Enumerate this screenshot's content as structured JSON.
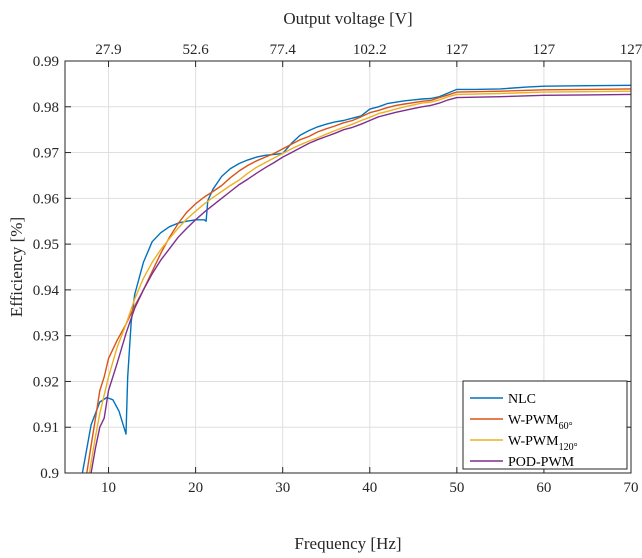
{
  "chart_data": {
    "type": "line",
    "xlabel": "Frequency [Hz]",
    "ylabel": "Efficiency [%]",
    "top_xlabel": "Output voltage [V]",
    "xlim": [
      5,
      70
    ],
    "ylim": [
      0.9,
      0.99
    ],
    "x_ticks": [
      10,
      20,
      30,
      40,
      50,
      60,
      70
    ],
    "y_ticks": [
      0.9,
      0.91,
      0.92,
      0.93,
      0.94,
      0.95,
      0.96,
      0.97,
      0.98,
      0.99
    ],
    "y_tick_labels": [
      "0.9",
      "0.91",
      "0.92",
      "0.93",
      "0.94",
      "0.95",
      "0.96",
      "0.97",
      "0.98",
      "0.99"
    ],
    "top_ticks": [
      {
        "x": 10,
        "label": "27.9"
      },
      {
        "x": 20,
        "label": "52.6"
      },
      {
        "x": 30,
        "label": "77.4"
      },
      {
        "x": 40,
        "label": "102.2"
      },
      {
        "x": 50,
        "label": "127"
      },
      {
        "x": 60,
        "label": "127"
      },
      {
        "x": 70,
        "label": "127"
      }
    ],
    "grid": true,
    "legend_position": "bottom-right",
    "series": [
      {
        "name": "NLC",
        "name_sub": "",
        "color": "#0072BD",
        "points": [
          [
            7.0,
            0.9
          ],
          [
            8.0,
            0.9105
          ],
          [
            9.0,
            0.9155
          ],
          [
            9.8,
            0.9165
          ],
          [
            10.5,
            0.916
          ],
          [
            11.2,
            0.9135
          ],
          [
            12.0,
            0.9085
          ],
          [
            12.2,
            0.921
          ],
          [
            12.6,
            0.933
          ],
          [
            13.0,
            0.939
          ],
          [
            14.0,
            0.946
          ],
          [
            15.0,
            0.9505
          ],
          [
            16.0,
            0.9525
          ],
          [
            17.0,
            0.9538
          ],
          [
            18.0,
            0.9546
          ],
          [
            19.0,
            0.955
          ],
          [
            20.0,
            0.9553
          ],
          [
            21.0,
            0.9553
          ],
          [
            21.2,
            0.955
          ],
          [
            21.4,
            0.9595
          ],
          [
            22.0,
            0.962
          ],
          [
            23.0,
            0.9648
          ],
          [
            24.0,
            0.9665
          ],
          [
            25.0,
            0.9676
          ],
          [
            26.0,
            0.9684
          ],
          [
            27.0,
            0.969
          ],
          [
            28.0,
            0.9694
          ],
          [
            29.0,
            0.9696
          ],
          [
            30.0,
            0.9698
          ],
          [
            31.0,
            0.972
          ],
          [
            32.0,
            0.9738
          ],
          [
            33.0,
            0.9748
          ],
          [
            34.0,
            0.9756
          ],
          [
            35.0,
            0.9762
          ],
          [
            36.0,
            0.9767
          ],
          [
            37.0,
            0.977
          ],
          [
            38.0,
            0.9775
          ],
          [
            39.0,
            0.978
          ],
          [
            40.0,
            0.9795
          ],
          [
            41.0,
            0.98
          ],
          [
            42.0,
            0.9807
          ],
          [
            43.0,
            0.981
          ],
          [
            44.0,
            0.9813
          ],
          [
            45.0,
            0.9815
          ],
          [
            46.0,
            0.9817
          ],
          [
            47.0,
            0.9818
          ],
          [
            48.0,
            0.9822
          ],
          [
            49.0,
            0.983
          ],
          [
            50.0,
            0.9838
          ],
          [
            52.0,
            0.9838
          ],
          [
            55.0,
            0.9839
          ],
          [
            58.0,
            0.9843
          ],
          [
            60.0,
            0.9845
          ],
          [
            65.0,
            0.9846
          ],
          [
            70.0,
            0.9847
          ]
        ]
      },
      {
        "name": "W-PWM",
        "name_sub": "60°",
        "color": "#D95319",
        "points": [
          [
            7.5,
            0.9
          ],
          [
            8.0,
            0.906
          ],
          [
            8.5,
            0.912
          ],
          [
            9.0,
            0.918
          ],
          [
            9.5,
            0.921
          ],
          [
            10.0,
            0.925
          ],
          [
            11.0,
            0.929
          ],
          [
            12.0,
            0.9325
          ],
          [
            13.0,
            0.9365
          ],
          [
            14.0,
            0.94
          ],
          [
            15.0,
            0.944
          ],
          [
            16.0,
            0.948
          ],
          [
            17.0,
            0.9515
          ],
          [
            18.0,
            0.9545
          ],
          [
            19.0,
            0.957
          ],
          [
            20.0,
            0.9588
          ],
          [
            21.0,
            0.9603
          ],
          [
            22.0,
            0.9615
          ],
          [
            23.0,
            0.9628
          ],
          [
            24.0,
            0.9645
          ],
          [
            25.0,
            0.966
          ],
          [
            26.0,
            0.9672
          ],
          [
            27.0,
            0.9682
          ],
          [
            28.0,
            0.969
          ],
          [
            29.0,
            0.9698
          ],
          [
            30.0,
            0.9708
          ],
          [
            31.0,
            0.9718
          ],
          [
            32.0,
            0.9728
          ],
          [
            33.0,
            0.9735
          ],
          [
            34.0,
            0.9745
          ],
          [
            35.0,
            0.9752
          ],
          [
            36.0,
            0.9758
          ],
          [
            37.0,
            0.9765
          ],
          [
            38.0,
            0.977
          ],
          [
            39.0,
            0.9778
          ],
          [
            40.0,
            0.9787
          ],
          [
            41.0,
            0.9792
          ],
          [
            42.0,
            0.9798
          ],
          [
            43.0,
            0.9803
          ],
          [
            44.0,
            0.9806
          ],
          [
            45.0,
            0.9809
          ],
          [
            46.0,
            0.9812
          ],
          [
            47.0,
            0.9814
          ],
          [
            48.0,
            0.982
          ],
          [
            49.0,
            0.9826
          ],
          [
            50.0,
            0.9832
          ],
          [
            55.0,
            0.9834
          ],
          [
            60.0,
            0.9837
          ],
          [
            65.0,
            0.9838
          ],
          [
            70.0,
            0.9839
          ]
        ]
      },
      {
        "name": "W-PWM",
        "name_sub": "120°",
        "color": "#EDB120",
        "points": [
          [
            7.8,
            0.9
          ],
          [
            8.5,
            0.908
          ],
          [
            9.0,
            0.913
          ],
          [
            10.0,
            0.921
          ],
          [
            11.0,
            0.9275
          ],
          [
            12.0,
            0.9325
          ],
          [
            13.0,
            0.938
          ],
          [
            14.0,
            0.9425
          ],
          [
            15.0,
            0.946
          ],
          [
            16.0,
            0.9488
          ],
          [
            17.0,
            0.9512
          ],
          [
            18.0,
            0.9535
          ],
          [
            19.0,
            0.9555
          ],
          [
            20.0,
            0.9572
          ],
          [
            21.0,
            0.9588
          ],
          [
            22.0,
            0.9602
          ],
          [
            23.0,
            0.9615
          ],
          [
            24.0,
            0.9628
          ],
          [
            25.0,
            0.964
          ],
          [
            26.0,
            0.9655
          ],
          [
            27.0,
            0.9668
          ],
          [
            28.0,
            0.9678
          ],
          [
            29.0,
            0.9688
          ],
          [
            30.0,
            0.9698
          ],
          [
            31.0,
            0.9708
          ],
          [
            32.0,
            0.9717
          ],
          [
            33.0,
            0.9725
          ],
          [
            34.0,
            0.9732
          ],
          [
            35.0,
            0.974
          ],
          [
            36.0,
            0.9748
          ],
          [
            37.0,
            0.9755
          ],
          [
            38.0,
            0.9762
          ],
          [
            39.0,
            0.977
          ],
          [
            40.0,
            0.9777
          ],
          [
            41.0,
            0.9785
          ],
          [
            42.0,
            0.979
          ],
          [
            43.0,
            0.9795
          ],
          [
            44.0,
            0.98
          ],
          [
            45.0,
            0.9804
          ],
          [
            46.0,
            0.9808
          ],
          [
            47.0,
            0.981
          ],
          [
            48.0,
            0.9815
          ],
          [
            49.0,
            0.9822
          ],
          [
            50.0,
            0.9827
          ],
          [
            55.0,
            0.9829
          ],
          [
            60.0,
            0.9832
          ],
          [
            65.0,
            0.9833
          ],
          [
            70.0,
            0.9834
          ]
        ]
      },
      {
        "name": "POD-PWM",
        "name_sub": "",
        "color": "#7E2F8E",
        "points": [
          [
            8.0,
            0.9
          ],
          [
            8.5,
            0.9055
          ],
          [
            9.0,
            0.91
          ],
          [
            9.5,
            0.912
          ],
          [
            10.0,
            0.918
          ],
          [
            11.0,
            0.924
          ],
          [
            12.0,
            0.9305
          ],
          [
            13.0,
            0.936
          ],
          [
            14.0,
            0.94
          ],
          [
            15.0,
            0.9435
          ],
          [
            16.0,
            0.9465
          ],
          [
            17.0,
            0.949
          ],
          [
            18.0,
            0.9515
          ],
          [
            19.0,
            0.9535
          ],
          [
            20.0,
            0.9553
          ],
          [
            21.0,
            0.957
          ],
          [
            22.0,
            0.9585
          ],
          [
            23.0,
            0.96
          ],
          [
            24.0,
            0.9615
          ],
          [
            25.0,
            0.963
          ],
          [
            26.0,
            0.9642
          ],
          [
            27.0,
            0.9655
          ],
          [
            28.0,
            0.9667
          ],
          [
            29.0,
            0.9678
          ],
          [
            30.0,
            0.969
          ],
          [
            31.0,
            0.97
          ],
          [
            32.0,
            0.971
          ],
          [
            33.0,
            0.972
          ],
          [
            34.0,
            0.9728
          ],
          [
            35.0,
            0.9735
          ],
          [
            36.0,
            0.9742
          ],
          [
            37.0,
            0.975
          ],
          [
            38.0,
            0.9755
          ],
          [
            39.0,
            0.9762
          ],
          [
            40.0,
            0.977
          ],
          [
            41.0,
            0.9778
          ],
          [
            42.0,
            0.9783
          ],
          [
            43.0,
            0.9788
          ],
          [
            44.0,
            0.9792
          ],
          [
            45.0,
            0.9796
          ],
          [
            46.0,
            0.98
          ],
          [
            47.0,
            0.9803
          ],
          [
            48.0,
            0.9808
          ],
          [
            49.0,
            0.9815
          ],
          [
            50.0,
            0.982
          ],
          [
            55.0,
            0.9822
          ],
          [
            60.0,
            0.9825
          ],
          [
            65.0,
            0.9826
          ],
          [
            70.0,
            0.9827
          ]
        ]
      }
    ]
  }
}
